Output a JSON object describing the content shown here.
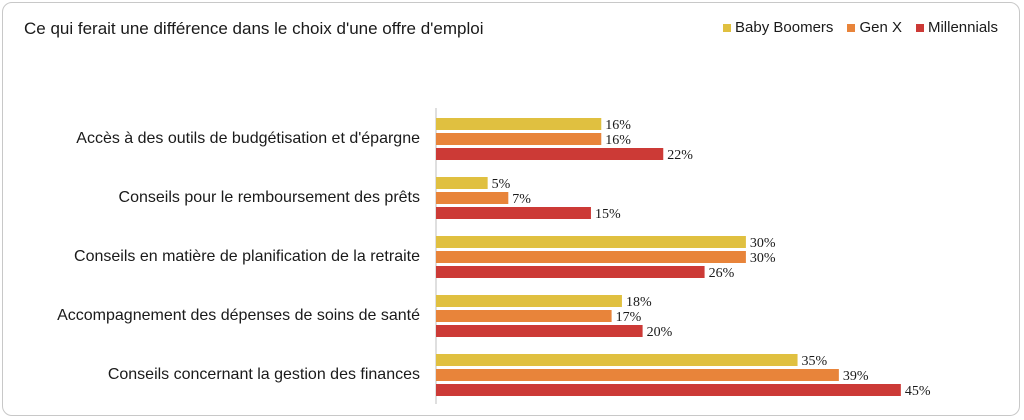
{
  "chart_data": {
    "type": "bar",
    "orientation": "horizontal",
    "title": "Ce qui ferait une différence dans le choix d'une offre d'emploi",
    "categories": [
      "Accès à des outils de budgétisation et d'épargne",
      "Conseils pour le remboursement des prêts",
      "Conseils en matière de planification de la retraite",
      "Accompagnement des dépenses de soins de santé",
      "Conseils concernant la gestion des finances"
    ],
    "series": [
      {
        "name": "Baby Boomers",
        "color": "#E0C040",
        "values": [
          16,
          5,
          30,
          18,
          35
        ]
      },
      {
        "name": "Gen X",
        "color": "#E8843A",
        "values": [
          16,
          7,
          30,
          17,
          39
        ]
      },
      {
        "name": "Millennials",
        "color": "#CC3A36",
        "values": [
          22,
          15,
          26,
          20,
          45
        ]
      }
    ],
    "value_suffix": "%",
    "xlim": [
      0,
      50
    ],
    "legend_position": "top-right",
    "grid": false
  }
}
